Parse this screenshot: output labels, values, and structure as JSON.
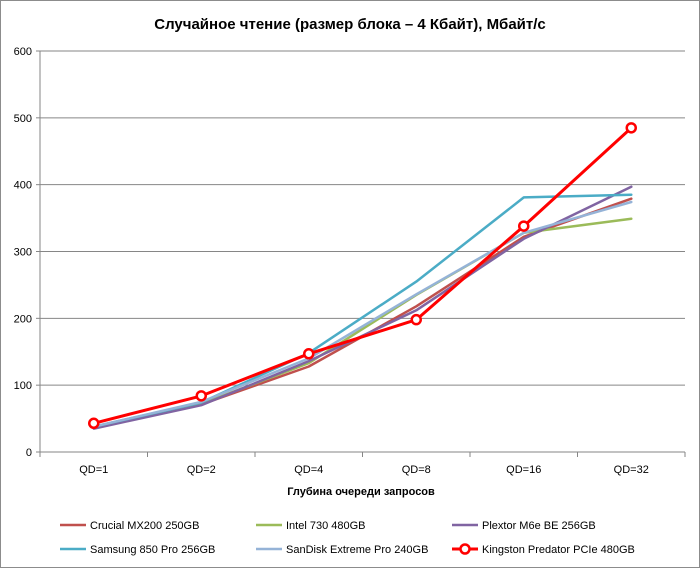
{
  "chart_data": {
    "type": "line",
    "title": "Случайное чтение (размер блока – 4 Кбайт), Мбайт/с",
    "xlabel": "Глубина очереди запросов",
    "ylabel": "",
    "categories": [
      "QD=1",
      "QD=2",
      "QD=4",
      "QD=8",
      "QD=16",
      "QD=32"
    ],
    "ylim": [
      0,
      600
    ],
    "yticks": [
      0,
      100,
      200,
      300,
      400,
      500,
      600
    ],
    "grid": "horizontal",
    "legend": "bottom",
    "series": [
      {
        "name": "Crucial MX200 250GB",
        "color": "#C0504D",
        "values": [
          37,
          71,
          128,
          218,
          322,
          379
        ]
      },
      {
        "name": "Intel 730 480GB",
        "color": "#9BBB59",
        "values": [
          37,
          72,
          133,
          235,
          328,
          349
        ]
      },
      {
        "name": "Plextor M6e BE 256GB",
        "color": "#8064A2",
        "values": [
          35,
          70,
          136,
          212,
          319,
          397
        ]
      },
      {
        "name": "Samsung 850 Pro 256GB",
        "color": "#4BACC6",
        "values": [
          38,
          74,
          148,
          255,
          381,
          385
        ]
      },
      {
        "name": "SanDisk Extreme Pro 240GB",
        "color": "#95B3D7",
        "values": [
          38,
          75,
          140,
          236,
          328,
          374
        ]
      },
      {
        "name": "Kingston Predator PCIe 480GB",
        "color": "#FF0000",
        "values": [
          43,
          84,
          147,
          198,
          338,
          485
        ],
        "markers": true
      }
    ]
  }
}
